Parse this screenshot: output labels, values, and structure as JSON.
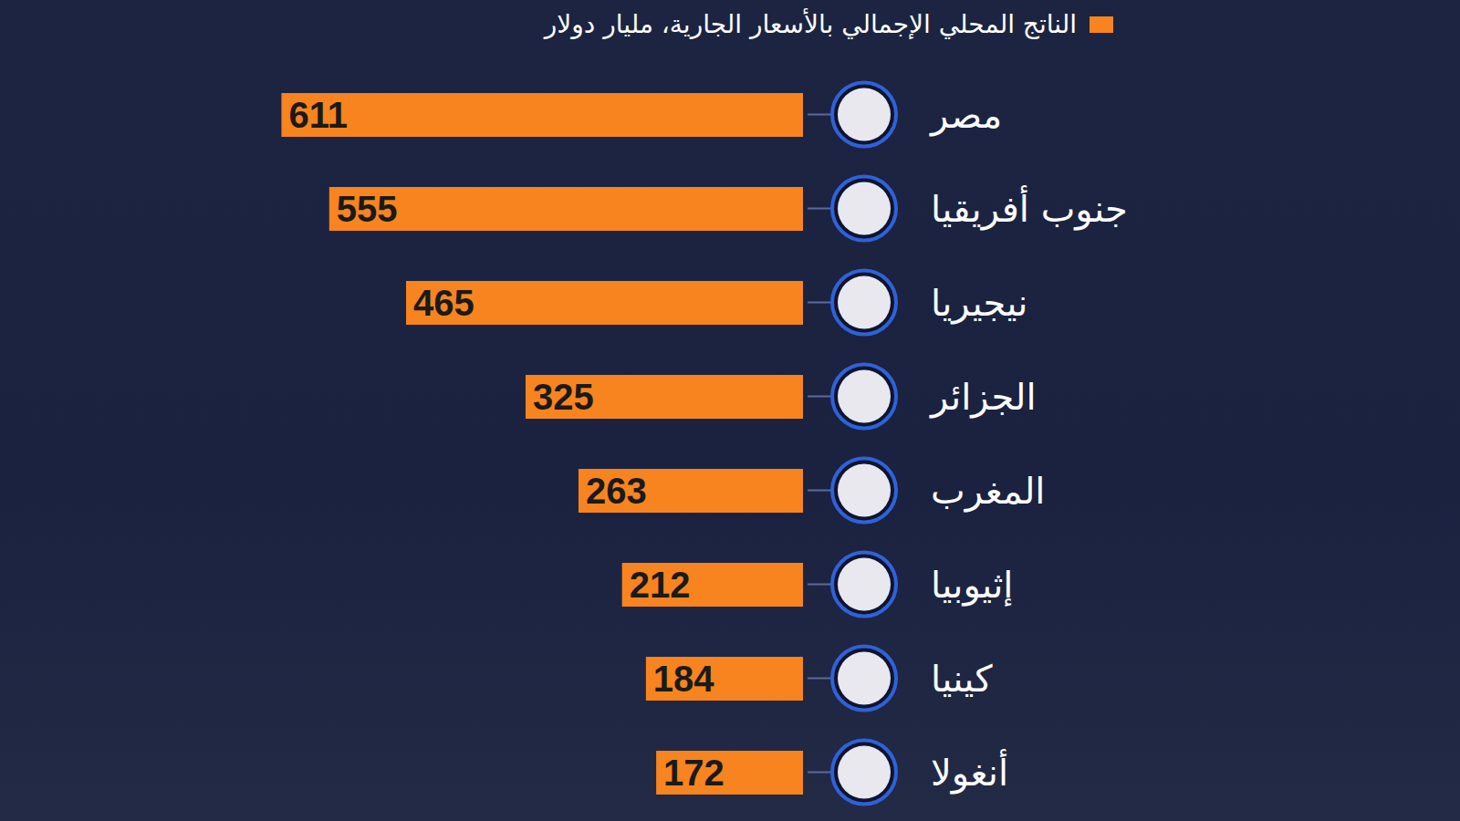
{
  "chart_data": {
    "type": "bar",
    "orientation": "horizontal",
    "title": "الناتج المحلي الإجمالي بالأسعار الجارية، مليار دولار",
    "categories": [
      "مصر",
      "جنوب أفريقيا",
      "نيجيريا",
      "الجزائر",
      "المغرب",
      "إثيوبيا",
      "كينيا",
      "أنغولا"
    ],
    "values": [
      611,
      555,
      465,
      325,
      263,
      212,
      184,
      172
    ],
    "color": "#f7841f",
    "xlim": [
      0,
      620
    ],
    "data_labels": true,
    "tick_labels": "y",
    "grid": false
  }
}
